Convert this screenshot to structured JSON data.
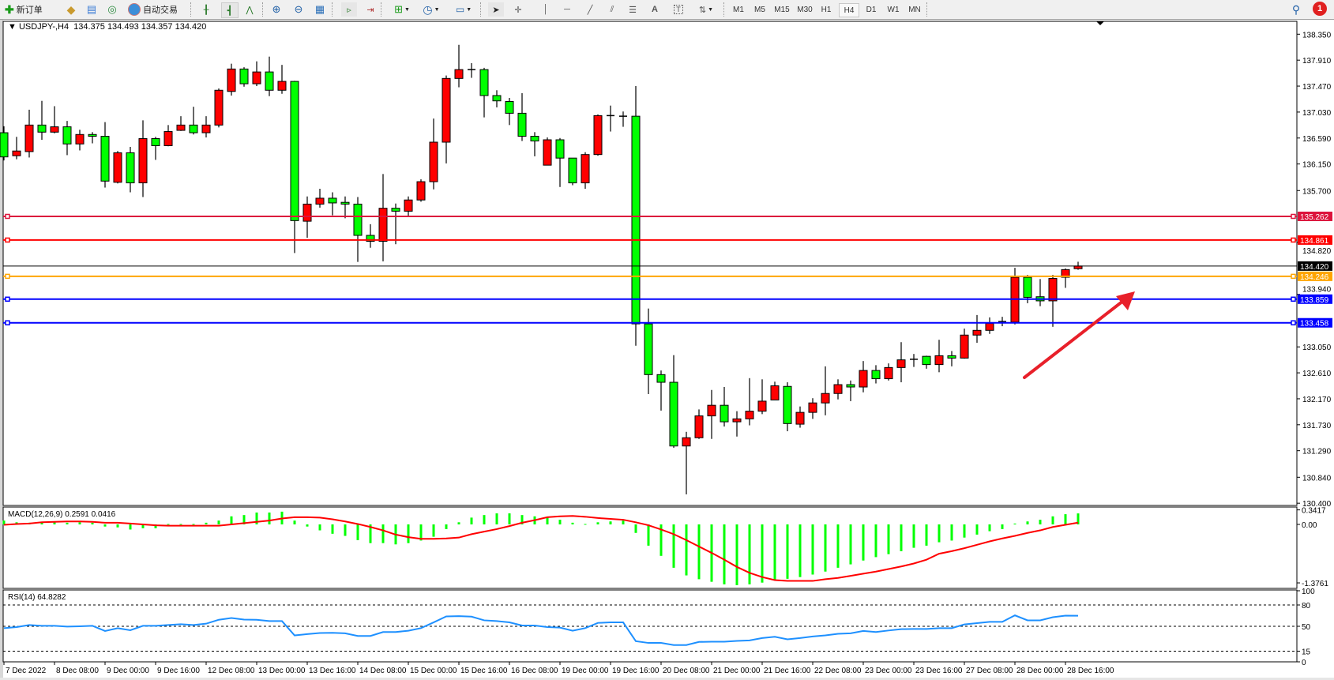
{
  "toolbar": {
    "new_order_label": "新订单",
    "auto_trading_label": "自动交易",
    "timeframes": [
      "M1",
      "M5",
      "M15",
      "M30",
      "H1",
      "H4",
      "D1",
      "W1",
      "MN"
    ],
    "selected_timeframe": "H4",
    "notification_count": "1"
  },
  "chart_header": {
    "symbol": "USDJPY-,H4",
    "ohlc": "134.375 134.493 134.357 134.420"
  },
  "price_axis": {
    "ticks": [
      "138.350",
      "137.910",
      "137.470",
      "137.030",
      "136.590",
      "136.150",
      "135.700",
      "134.820",
      "133.940",
      "133.050",
      "132.610",
      "132.170",
      "131.730",
      "131.290",
      "130.840",
      "130.400"
    ],
    "tick_values": [
      138.35,
      137.91,
      137.47,
      137.03,
      136.59,
      136.15,
      135.7,
      134.82,
      133.94,
      133.05,
      132.61,
      132.17,
      131.73,
      131.29,
      130.84,
      130.4
    ],
    "current_price": "134.420"
  },
  "levels": [
    {
      "label": "135.262",
      "value": 135.262,
      "color": "#DC143C"
    },
    {
      "label": "134.861",
      "value": 134.861,
      "color": "#FF0000"
    },
    {
      "label": "134.246",
      "value": 134.246,
      "color": "#FFA500"
    },
    {
      "label": "133.859",
      "value": 133.859,
      "color": "#0000FF"
    },
    {
      "label": "133.458",
      "value": 133.458,
      "color": "#0000FF"
    }
  ],
  "colors": {
    "bull": "#FF0000",
    "bear": "#00FF00",
    "macd_hist": "#00FF00",
    "macd_signal": "#FF0000",
    "rsi": "#1E90FF",
    "arrow": "#E8202A"
  },
  "macd": {
    "label": "MACD(12,26,9) 0.2591 0.0416",
    "axis": [
      "0.3417",
      "0.00",
      "-1.3761"
    ],
    "axis_values": [
      0.3417,
      0,
      -1.3761
    ]
  },
  "rsi": {
    "label": "RSI(14) 64.8282",
    "axis": [
      "100",
      "80",
      "50",
      "15",
      "0"
    ],
    "axis_values": [
      100,
      80,
      50,
      15,
      0
    ],
    "levels": [
      80,
      50,
      15
    ]
  },
  "time_axis": {
    "labels": [
      "7 Dec 2022",
      "8 Dec 08:00",
      "9 Dec 00:00",
      "9 Dec 16:00",
      "12 Dec 08:00",
      "13 Dec 00:00",
      "13 Dec 16:00",
      "14 Dec 08:00",
      "15 Dec 00:00",
      "15 Dec 16:00",
      "16 Dec 08:00",
      "19 Dec 00:00",
      "19 Dec 16:00",
      "20 Dec 08:00",
      "21 Dec 00:00",
      "21 Dec 16:00",
      "22 Dec 08:00",
      "23 Dec 00:00",
      "23 Dec 16:00",
      "27 Dec 08:00",
      "28 Dec 00:00",
      "28 Dec 16:00"
    ]
  },
  "chart_data": {
    "type": "candlestick",
    "symbol": "USDJPY-",
    "timeframe": "H4",
    "ylim": [
      130.4,
      138.35
    ],
    "ohlc": [
      [
        136.68,
        136.79,
        136.21,
        136.27
      ],
      [
        136.29,
        136.61,
        136.23,
        136.37
      ],
      [
        136.36,
        137.07,
        136.26,
        136.81
      ],
      [
        136.81,
        137.22,
        136.56,
        136.69
      ],
      [
        136.69,
        137.13,
        136.67,
        136.78
      ],
      [
        136.78,
        136.88,
        136.3,
        136.49
      ],
      [
        136.49,
        136.73,
        136.38,
        136.65
      ],
      [
        136.65,
        136.69,
        136.5,
        136.62
      ],
      [
        136.62,
        136.86,
        135.75,
        135.86
      ],
      [
        135.84,
        136.37,
        135.82,
        136.34
      ],
      [
        136.34,
        136.44,
        135.67,
        135.83
      ],
      [
        135.83,
        136.89,
        135.59,
        136.58
      ],
      [
        136.58,
        136.61,
        136.22,
        136.46
      ],
      [
        136.46,
        136.81,
        136.45,
        136.7
      ],
      [
        136.72,
        136.96,
        136.71,
        136.81
      ],
      [
        136.81,
        137.12,
        136.65,
        136.68
      ],
      [
        136.68,
        136.96,
        136.6,
        136.81
      ],
      [
        136.81,
        137.43,
        136.77,
        137.4
      ],
      [
        137.38,
        137.85,
        137.31,
        137.76
      ],
      [
        137.76,
        137.79,
        137.46,
        137.51
      ],
      [
        137.51,
        137.89,
        137.47,
        137.71
      ],
      [
        137.71,
        137.97,
        137.3,
        137.4
      ],
      [
        137.4,
        137.83,
        137.34,
        137.55
      ],
      [
        137.55,
        137.56,
        134.64,
        135.19
      ],
      [
        135.18,
        135.6,
        134.9,
        135.47
      ],
      [
        135.47,
        135.73,
        135.41,
        135.57
      ],
      [
        135.57,
        135.67,
        135.28,
        135.49
      ],
      [
        135.5,
        135.6,
        135.23,
        135.47
      ],
      [
        135.47,
        135.59,
        134.49,
        134.94
      ],
      [
        134.94,
        135.13,
        134.73,
        134.84
      ],
      [
        134.84,
        135.98,
        134.5,
        135.4
      ],
      [
        135.4,
        135.48,
        134.79,
        135.35
      ],
      [
        135.35,
        135.6,
        135.27,
        135.54
      ],
      [
        135.54,
        135.89,
        135.51,
        135.85
      ],
      [
        135.85,
        136.92,
        135.72,
        136.52
      ],
      [
        136.52,
        137.65,
        136.16,
        137.6
      ],
      [
        137.6,
        138.17,
        137.45,
        137.75
      ],
      [
        137.75,
        137.86,
        137.61,
        137.75
      ],
      [
        137.75,
        137.78,
        136.94,
        137.31
      ],
      [
        137.31,
        137.4,
        137.11,
        137.22
      ],
      [
        137.21,
        137.27,
        136.81,
        137.01
      ],
      [
        137.01,
        137.35,
        136.54,
        136.62
      ],
      [
        136.62,
        136.69,
        136.28,
        136.54
      ],
      [
        136.13,
        136.6,
        136.13,
        136.56
      ],
      [
        136.56,
        136.59,
        135.76,
        136.25
      ],
      [
        136.25,
        136.25,
        135.79,
        135.83
      ],
      [
        135.83,
        136.35,
        135.73,
        136.31
      ],
      [
        136.31,
        136.99,
        136.29,
        136.97
      ],
      [
        136.97,
        137.14,
        136.7,
        136.97
      ],
      [
        136.96,
        137.04,
        136.78,
        136.96
      ],
      [
        136.96,
        137.47,
        133.07,
        133.44
      ],
      [
        133.44,
        133.7,
        132.25,
        132.58
      ],
      [
        132.58,
        132.65,
        131.97,
        132.45
      ],
      [
        132.45,
        132.91,
        131.34,
        131.37
      ],
      [
        131.37,
        131.61,
        130.55,
        131.51
      ],
      [
        131.51,
        131.99,
        131.49,
        131.88
      ],
      [
        131.88,
        132.32,
        131.49,
        132.06
      ],
      [
        132.06,
        132.37,
        131.7,
        131.78
      ],
      [
        131.78,
        131.96,
        131.53,
        131.83
      ],
      [
        131.83,
        132.52,
        131.72,
        131.96
      ],
      [
        131.96,
        132.5,
        131.91,
        132.13
      ],
      [
        132.15,
        132.46,
        132.15,
        132.39
      ],
      [
        132.38,
        132.45,
        131.62,
        131.75
      ],
      [
        131.74,
        132.04,
        131.68,
        131.94
      ],
      [
        131.94,
        132.18,
        131.83,
        132.1
      ],
      [
        132.1,
        132.72,
        131.89,
        132.26
      ],
      [
        132.26,
        132.5,
        132.16,
        132.41
      ],
      [
        132.41,
        132.48,
        132.13,
        132.37
      ],
      [
        132.37,
        132.81,
        132.28,
        132.65
      ],
      [
        132.65,
        132.74,
        132.43,
        132.51
      ],
      [
        132.51,
        132.77,
        132.48,
        132.7
      ],
      [
        132.7,
        133.13,
        132.45,
        132.83
      ],
      [
        132.84,
        132.93,
        132.71,
        132.84
      ],
      [
        132.89,
        132.9,
        132.68,
        132.75
      ],
      [
        132.75,
        133.17,
        132.62,
        132.9
      ],
      [
        132.9,
        132.98,
        132.72,
        132.86
      ],
      [
        132.86,
        133.36,
        132.85,
        133.25
      ],
      [
        133.25,
        133.59,
        133.12,
        133.33
      ],
      [
        133.33,
        133.55,
        133.27,
        133.45
      ],
      [
        133.48,
        133.56,
        133.4,
        133.48
      ],
      [
        133.47,
        134.39,
        133.43,
        134.23
      ],
      [
        134.23,
        134.27,
        133.79,
        133.89
      ],
      [
        133.9,
        134.2,
        133.74,
        133.83
      ],
      [
        133.83,
        134.27,
        133.39,
        134.21
      ],
      [
        134.23,
        134.38,
        134.05,
        134.36
      ],
      [
        134.375,
        134.493,
        134.357,
        134.42
      ]
    ],
    "macd_hist": [
      0.09,
      0.05,
      0.04,
      0.05,
      0.05,
      0.04,
      0.05,
      0.04,
      -0.05,
      -0.07,
      -0.12,
      -0.09,
      -0.09,
      0.01,
      0.01,
      0.01,
      0.04,
      0.09,
      0.19,
      0.22,
      0.28,
      0.28,
      0.3,
      0.09,
      -0.05,
      -0.14,
      -0.22,
      -0.27,
      -0.37,
      -0.44,
      -0.44,
      -0.47,
      -0.44,
      -0.38,
      -0.29,
      -0.11,
      0.05,
      0.16,
      0.22,
      0.26,
      0.26,
      0.22,
      0.19,
      0.17,
      0.11,
      0.04,
      0.01,
      0.05,
      0.07,
      0.09,
      -0.2,
      -0.5,
      -0.74,
      -1.02,
      -1.2,
      -1.29,
      -1.35,
      -1.41,
      -1.43,
      -1.41,
      -1.37,
      -1.31,
      -1.28,
      -1.24,
      -1.18,
      -1.11,
      -1.02,
      -0.94,
      -0.85,
      -0.77,
      -0.7,
      -0.63,
      -0.55,
      -0.5,
      -0.42,
      -0.38,
      -0.31,
      -0.24,
      -0.16,
      -0.11,
      0.02,
      0.07,
      0.11,
      0.19,
      0.24,
      0.2591
    ],
    "macd_signal": [
      -0.01,
      0.01,
      0.02,
      0.05,
      0.06,
      0.07,
      0.07,
      0.06,
      0.04,
      0.04,
      0.02,
      0.0,
      -0.02,
      -0.03,
      -0.03,
      -0.03,
      -0.03,
      -0.03,
      0.0,
      0.03,
      0.06,
      0.09,
      0.14,
      0.17,
      0.17,
      0.16,
      0.12,
      0.07,
      0.01,
      -0.06,
      -0.14,
      -0.24,
      -0.3,
      -0.34,
      -0.34,
      -0.33,
      -0.31,
      -0.23,
      -0.17,
      -0.11,
      -0.04,
      0.04,
      0.1,
      0.17,
      0.19,
      0.2,
      0.18,
      0.15,
      0.13,
      0.11,
      0.05,
      -0.02,
      -0.12,
      -0.23,
      -0.37,
      -0.52,
      -0.67,
      -0.83,
      -1.0,
      -1.14,
      -1.24,
      -1.31,
      -1.33,
      -1.33,
      -1.33,
      -1.29,
      -1.26,
      -1.21,
      -1.16,
      -1.11,
      -1.05,
      -0.99,
      -0.92,
      -0.83,
      -0.69,
      -0.63,
      -0.56,
      -0.48,
      -0.4,
      -0.33,
      -0.27,
      -0.2,
      -0.14,
      -0.06,
      -0.01,
      0.0416
    ],
    "rsi": [
      47.4,
      48.9,
      51.8,
      50.7,
      50.7,
      49.6,
      50.0,
      50.7,
      43.4,
      47.4,
      44.5,
      50.7,
      50.7,
      51.8,
      52.9,
      51.8,
      53.7,
      59.2,
      61.7,
      59.5,
      59.2,
      57.3,
      57.3,
      37.2,
      39.0,
      40.5,
      40.8,
      40.1,
      36.4,
      36.4,
      41.9,
      41.9,
      43.8,
      47.4,
      55.5,
      63.9,
      64.3,
      63.6,
      58.4,
      57.3,
      55.5,
      51.1,
      51.1,
      48.9,
      48.2,
      43.8,
      47.4,
      54.8,
      55.5,
      55.5,
      29.1,
      26.6,
      26.6,
      23.6,
      23.6,
      28.0,
      28.4,
      28.4,
      29.5,
      30.2,
      33.5,
      35.3,
      31.7,
      33.5,
      35.7,
      37.2,
      39.4,
      40.1,
      43.4,
      41.9,
      44.1,
      46.0,
      46.3,
      46.3,
      47.4,
      47.4,
      52.6,
      54.4,
      56.2,
      56.2,
      65.4,
      58.4,
      58.4,
      62.8,
      65.0,
      64.83
    ]
  }
}
